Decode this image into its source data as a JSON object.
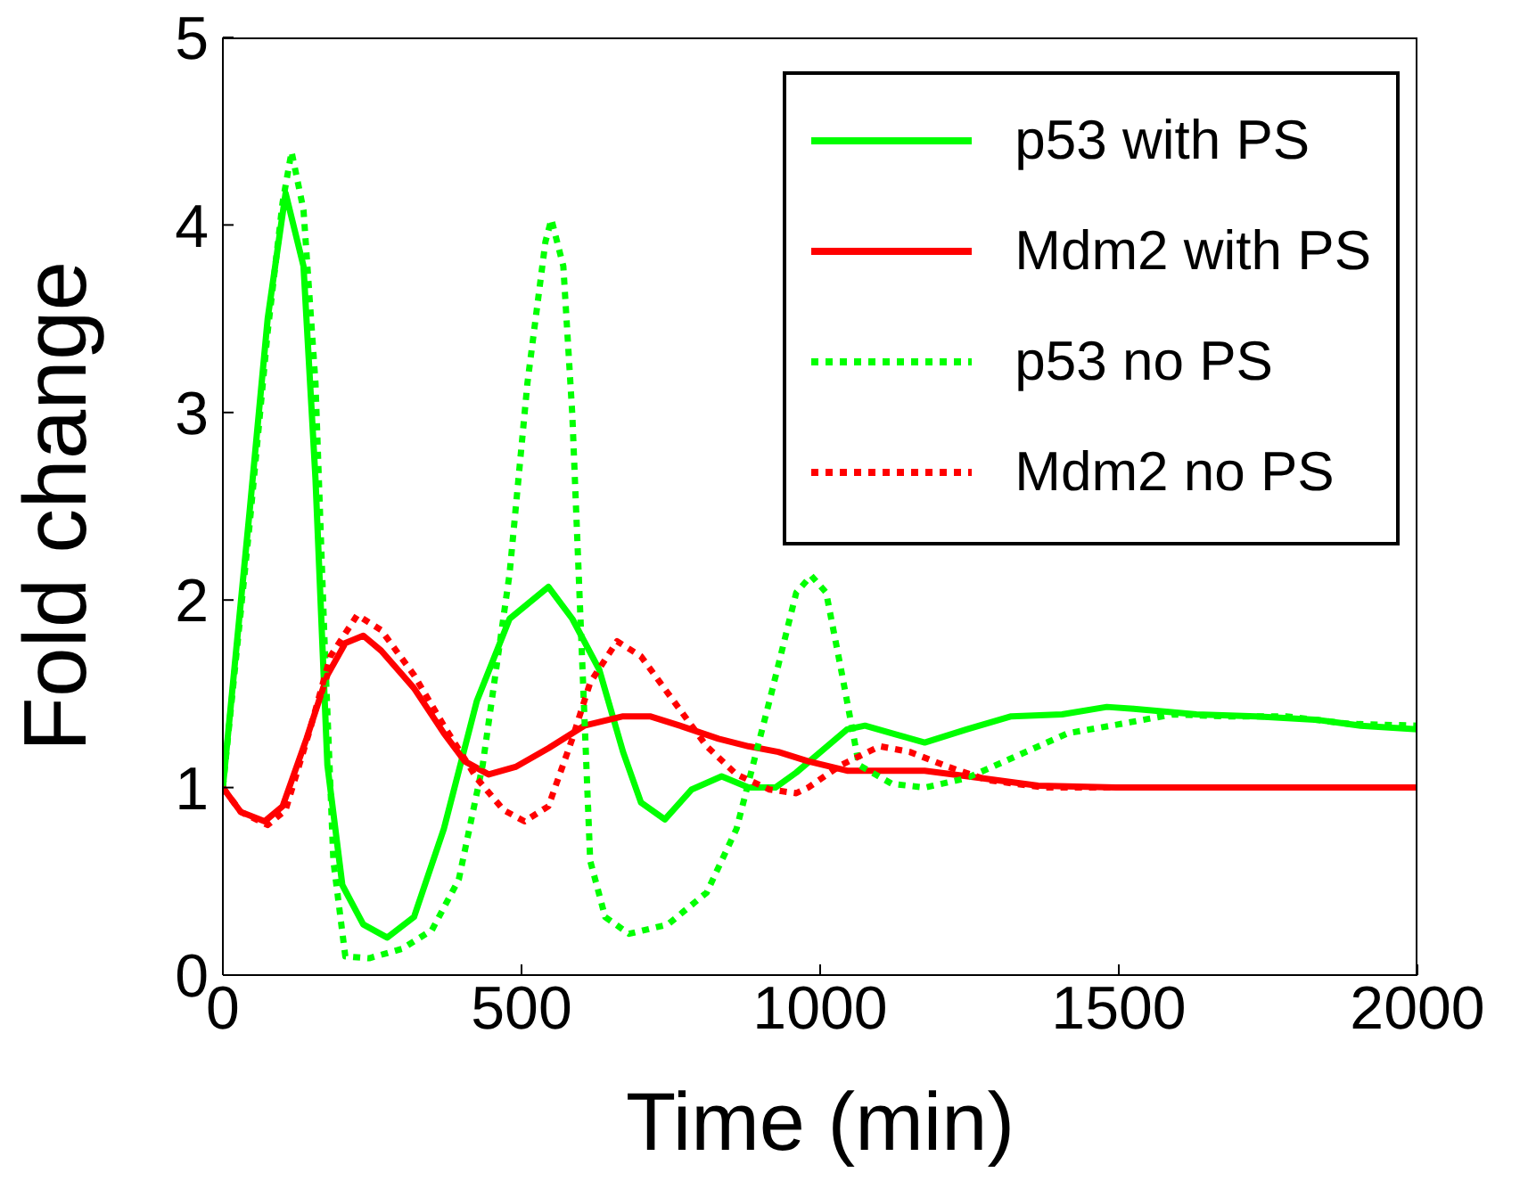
{
  "chart_data": {
    "type": "line",
    "xlabel": "Time (min)",
    "ylabel": "Fold change",
    "xlim": [
      0,
      2000
    ],
    "xticks": [
      0,
      500,
      1000,
      1500,
      2000
    ],
    "ylim": [
      0,
      5
    ],
    "yticks": [
      0,
      1,
      2,
      3,
      4,
      5
    ],
    "legend": "top right",
    "marker": "none",
    "series": [
      {
        "name": "p53 with PS",
        "color": "#00ff00",
        "line_style": "solid",
        "x": [
          0,
          45,
          75,
          105,
          135,
          155,
          175,
          200,
          235,
          275,
          320,
          370,
          425,
          480,
          545,
          585,
          630,
          670,
          700,
          740,
          785,
          835,
          880,
          925,
          960,
          1045,
          1075,
          1130,
          1175,
          1245,
          1320,
          1405,
          1480,
          1525,
          1630,
          1730,
          1835,
          1905,
          2000
        ],
        "values": [
          1.0,
          2.48,
          3.5,
          4.17,
          3.78,
          2.65,
          1.12,
          0.48,
          0.27,
          0.2,
          0.31,
          0.78,
          1.46,
          1.9,
          2.07,
          1.9,
          1.63,
          1.19,
          0.92,
          0.83,
          0.99,
          1.06,
          1.0,
          1.0,
          1.08,
          1.31,
          1.33,
          1.28,
          1.24,
          1.31,
          1.38,
          1.39,
          1.43,
          1.42,
          1.39,
          1.38,
          1.36,
          1.33,
          1.31
        ]
      },
      {
        "name": "Mdm2 with PS",
        "color": "#ff0000",
        "line_style": "solid",
        "x": [
          0,
          30,
          70,
          100,
          140,
          175,
          205,
          235,
          265,
          320,
          370,
          405,
          445,
          490,
          545,
          605,
          670,
          715,
          765,
          830,
          880,
          930,
          980,
          1045,
          1175,
          1270,
          1365,
          1495,
          2000
        ],
        "values": [
          1.0,
          0.87,
          0.82,
          0.9,
          1.26,
          1.6,
          1.77,
          1.81,
          1.73,
          1.53,
          1.29,
          1.14,
          1.07,
          1.11,
          1.21,
          1.33,
          1.38,
          1.38,
          1.33,
          1.26,
          1.22,
          1.19,
          1.14,
          1.09,
          1.09,
          1.05,
          1.01,
          1.0,
          1.0
        ]
      },
      {
        "name": "p53 no PS",
        "color": "#00ff00",
        "line_style": "dotted",
        "x": [
          0,
          45,
          75,
          100,
          115,
          135,
          155,
          170,
          185,
          205,
          245,
          300,
          350,
          395,
          435,
          480,
          510,
          540,
          550,
          570,
          585,
          600,
          615,
          640,
          680,
          745,
          810,
          860,
          915,
          960,
          985,
          1010,
          1035,
          1065,
          1120,
          1175,
          1245,
          1330,
          1415,
          1505,
          1590,
          1675,
          1780,
          1885,
          2000
        ],
        "values": [
          1.0,
          2.41,
          3.43,
          4.12,
          4.39,
          4.08,
          3.16,
          1.8,
          0.61,
          0.1,
          0.09,
          0.14,
          0.24,
          0.51,
          1.12,
          2.14,
          3.16,
          3.91,
          4.03,
          3.78,
          2.99,
          1.8,
          0.61,
          0.31,
          0.22,
          0.27,
          0.44,
          0.78,
          1.46,
          2.04,
          2.13,
          2.04,
          1.63,
          1.12,
          1.02,
          1.0,
          1.05,
          1.17,
          1.29,
          1.34,
          1.39,
          1.38,
          1.38,
          1.34,
          1.33
        ]
      },
      {
        "name": "Mdm2 no PS",
        "color": "#ff0000",
        "line_style": "dotted",
        "x": [
          0,
          30,
          75,
          105,
          145,
          180,
          225,
          265,
          320,
          370,
          425,
          470,
          505,
          545,
          585,
          615,
          660,
          700,
          755,
          810,
          860,
          915,
          960,
          980,
          1035,
          1100,
          1150,
          1215,
          1280,
          1375,
          2000
        ],
        "values": [
          1.0,
          0.87,
          0.8,
          0.88,
          1.3,
          1.7,
          1.92,
          1.84,
          1.6,
          1.33,
          1.05,
          0.88,
          0.82,
          0.9,
          1.26,
          1.56,
          1.78,
          1.7,
          1.46,
          1.22,
          1.07,
          0.99,
          0.97,
          1.0,
          1.12,
          1.22,
          1.19,
          1.11,
          1.04,
          1.0,
          1.0
        ]
      }
    ]
  }
}
